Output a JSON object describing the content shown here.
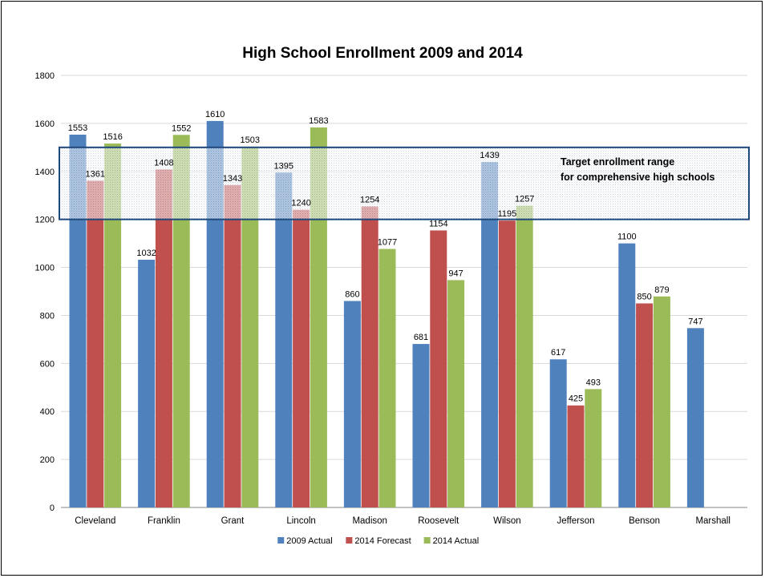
{
  "chart_data": {
    "type": "bar",
    "title": "High School Enrollment 2009 and 2014",
    "xlabel": "",
    "ylabel": "",
    "ylim": [
      0,
      1800
    ],
    "yticks": [
      0,
      200,
      400,
      600,
      800,
      1000,
      1200,
      1400,
      1600,
      1800
    ],
    "grid": true,
    "legend_position": "bottom",
    "categories": [
      "Cleveland",
      "Franklin",
      "Grant",
      "Lincoln",
      "Madison",
      "Roosevelt",
      "Wilson",
      "Jefferson",
      "Benson",
      "Marshall"
    ],
    "series": [
      {
        "name": "2009 Actual",
        "color": "#4F81BD",
        "values": [
          1553,
          1032,
          1610,
          1395,
          860,
          681,
          1439,
          617,
          1100,
          747
        ]
      },
      {
        "name": "2014 Forecast",
        "color": "#C0504D",
        "values": [
          1361,
          1408,
          1343,
          1240,
          1254,
          1154,
          1195,
          425,
          850,
          null
        ]
      },
      {
        "name": "2014 Actual",
        "color": "#9BBB59",
        "values": [
          1516,
          1552,
          1503,
          1583,
          1077,
          947,
          1257,
          493,
          879,
          null
        ]
      }
    ],
    "annotation": {
      "text_line1": "Target enrollment range",
      "text_line2": "for comprehensive high schools",
      "range": [
        1200,
        1500
      ],
      "border_color": "#1F497D"
    }
  }
}
